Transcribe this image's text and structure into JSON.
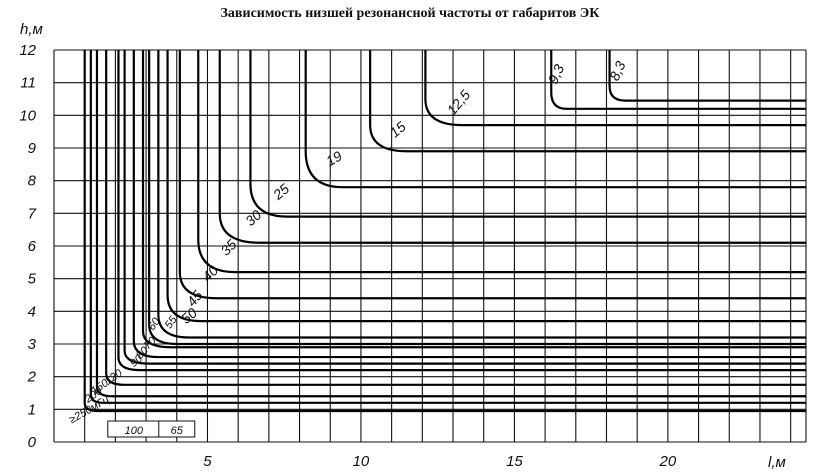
{
  "chart_data": {
    "type": "line",
    "title": "Зависимость низшей резонансной частоты от габаритов ЭК",
    "xlabel": "l,м",
    "ylabel": "h,м",
    "xlim": [
      0,
      24.5
    ],
    "ylim": [
      0,
      12
    ],
    "x_ticks": [
      "5",
      "10",
      "15",
      "20"
    ],
    "y_ticks": [
      "0",
      "1",
      "2",
      "3",
      "4",
      "5",
      "6",
      "7",
      "8",
      "9",
      "10",
      "11",
      "12"
    ],
    "grid": true,
    "series": [
      {
        "name": "8,3",
        "values": [
          [
            18.1,
            12
          ],
          [
            18.1,
            10.9
          ],
          [
            18.6,
            10.45
          ],
          [
            24.5,
            10.45
          ]
        ]
      },
      {
        "name": "9,3",
        "values": [
          [
            16.2,
            12
          ],
          [
            16.2,
            10.7
          ],
          [
            16.7,
            10.2
          ],
          [
            24.5,
            10.2
          ]
        ]
      },
      {
        "name": "12,5",
        "values": [
          [
            12.1,
            12
          ],
          [
            12.1,
            10.5
          ],
          [
            13.3,
            9.7
          ],
          [
            24.5,
            9.7
          ]
        ]
      },
      {
        "name": "15",
        "values": [
          [
            10.3,
            12
          ],
          [
            10.3,
            9.7
          ],
          [
            11.5,
            8.9
          ],
          [
            24.5,
            8.9
          ]
        ]
      },
      {
        "name": "19",
        "values": [
          [
            8.2,
            12
          ],
          [
            8.2,
            8.9
          ],
          [
            9.4,
            7.8
          ],
          [
            24.5,
            7.8
          ]
        ]
      },
      {
        "name": "25",
        "values": [
          [
            6.4,
            12
          ],
          [
            6.4,
            7.9
          ],
          [
            7.6,
            6.9
          ],
          [
            24.5,
            6.9
          ]
        ]
      },
      {
        "name": "30",
        "values": [
          [
            5.4,
            12
          ],
          [
            5.4,
            7.0
          ],
          [
            6.7,
            6.1
          ],
          [
            24.5,
            6.1
          ]
        ]
      },
      {
        "name": "35",
        "values": [
          [
            4.7,
            12
          ],
          [
            4.7,
            6.2
          ],
          [
            5.9,
            5.2
          ],
          [
            24.5,
            5.2
          ]
        ]
      },
      {
        "name": "40",
        "values": [
          [
            4.1,
            12
          ],
          [
            4.1,
            5.2
          ],
          [
            5.3,
            4.4
          ],
          [
            24.5,
            4.4
          ]
        ]
      },
      {
        "name": "45",
        "values": [
          [
            3.7,
            12
          ],
          [
            3.7,
            4.5
          ],
          [
            4.8,
            3.7
          ],
          [
            24.5,
            3.7
          ]
        ]
      },
      {
        "name": "50",
        "values": [
          [
            3.4,
            12
          ],
          [
            3.4,
            3.9
          ],
          [
            4.4,
            3.2
          ],
          [
            24.5,
            3.2
          ]
        ]
      },
      {
        "name": "55",
        "values": [
          [
            3.1,
            12
          ],
          [
            3.1,
            3.6
          ],
          [
            4.0,
            3.0
          ],
          [
            24.5,
            3.0
          ]
        ]
      },
      {
        "name": "60",
        "values": [
          [
            2.9,
            12
          ],
          [
            2.9,
            3.4
          ],
          [
            3.8,
            2.9
          ],
          [
            24.5,
            2.9
          ]
        ]
      },
      {
        "name": "70",
        "values": [
          [
            2.6,
            12
          ],
          [
            2.6,
            3.1
          ],
          [
            3.4,
            2.6
          ],
          [
            24.5,
            2.6
          ]
        ]
      },
      {
        "name": "80",
        "values": [
          [
            2.3,
            12
          ],
          [
            2.3,
            2.8
          ],
          [
            3.1,
            2.4
          ],
          [
            24.5,
            2.4
          ]
        ]
      },
      {
        "name": "90",
        "values": [
          [
            2.1,
            12
          ],
          [
            2.1,
            2.6
          ],
          [
            2.8,
            2.2
          ],
          [
            24.5,
            2.2
          ]
        ]
      },
      {
        "name": "120",
        "values": [
          [
            1.7,
            12
          ],
          [
            1.7,
            2.1
          ],
          [
            2.3,
            1.75
          ],
          [
            24.5,
            1.75
          ]
        ]
      },
      {
        "name": "150",
        "values": [
          [
            1.4,
            12
          ],
          [
            1.4,
            1.7
          ],
          [
            1.9,
            1.4
          ],
          [
            24.5,
            1.4
          ]
        ]
      },
      {
        "name": "200",
        "values": [
          [
            1.2,
            12
          ],
          [
            1.2,
            1.45
          ],
          [
            1.6,
            1.2
          ],
          [
            24.5,
            1.2
          ]
        ]
      },
      {
        "name": "≥250мГц",
        "values": [
          [
            1.0,
            12
          ],
          [
            1.0,
            1.2
          ],
          [
            1.4,
            0.95
          ],
          [
            24.5,
            0.95
          ]
        ]
      }
    ],
    "footer_labels": [
      "100",
      "65"
    ]
  }
}
